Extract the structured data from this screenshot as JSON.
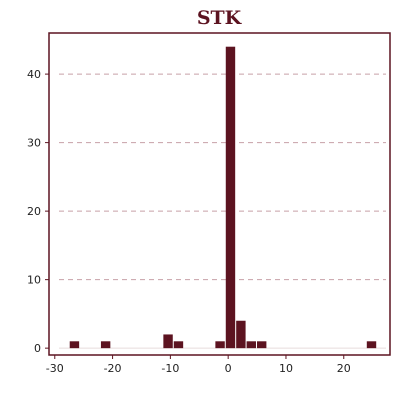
{
  "chart_data": {
    "type": "bar",
    "title": "STK",
    "xlabel": "",
    "ylabel": "",
    "xlim": [
      -31,
      28
    ],
    "ylim": [
      -1,
      46
    ],
    "x_ticks": [
      -30,
      -20,
      -10,
      0,
      10,
      20
    ],
    "y_ticks": [
      0,
      10,
      20,
      30,
      40
    ],
    "bin_width": 1.8,
    "grid": "horizontal dashed",
    "bar_color": "#5c1320",
    "frame_color": "#5c1320",
    "grid_color": "#c8a0a8",
    "bars": [
      {
        "x": -26.6,
        "value": 1
      },
      {
        "x": -21.2,
        "value": 1
      },
      {
        "x": -10.4,
        "value": 2
      },
      {
        "x": -8.6,
        "value": 1
      },
      {
        "x": -1.4,
        "value": 1
      },
      {
        "x": 0.4,
        "value": 44
      },
      {
        "x": 2.2,
        "value": 4
      },
      {
        "x": 4.0,
        "value": 1
      },
      {
        "x": 5.8,
        "value": 1
      },
      {
        "x": 24.8,
        "value": 1
      }
    ]
  }
}
